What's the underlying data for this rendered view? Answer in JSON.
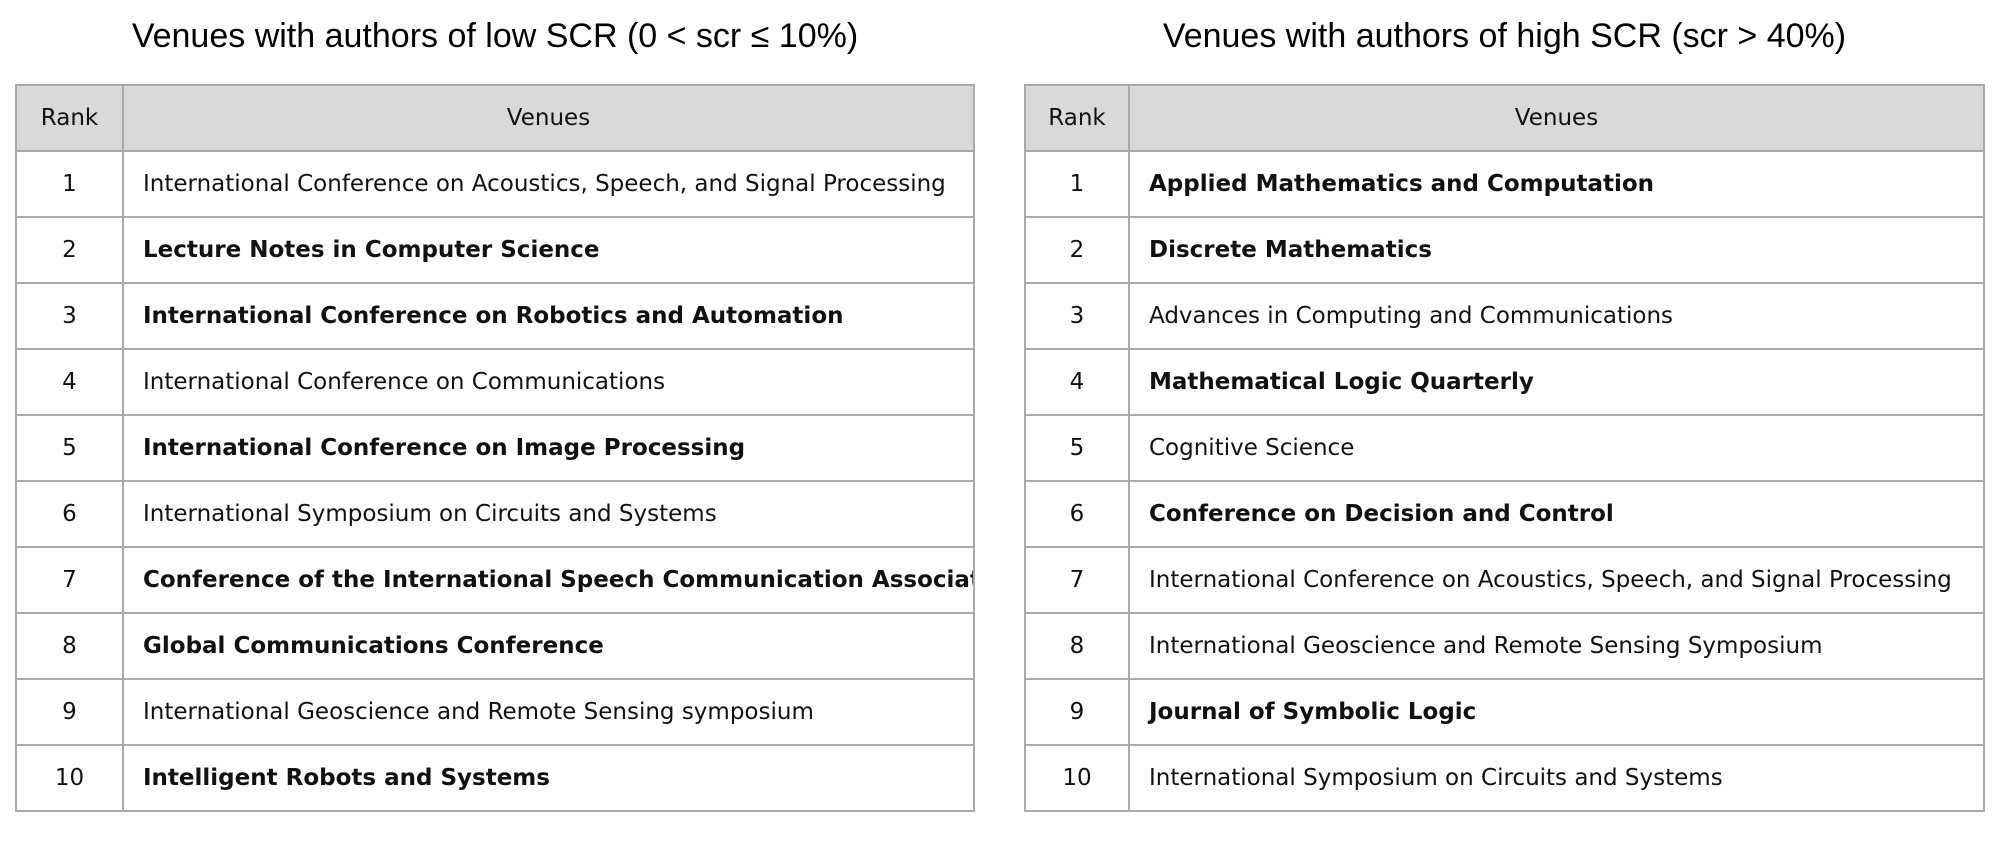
{
  "left": {
    "title": "Venues with authors of low SCR (0 < scr ≤ 10%)",
    "headers": {
      "rank": "Rank",
      "venues": "Venues"
    },
    "rows": [
      {
        "rank": "1",
        "venue": "International Conference on Acoustics, Speech, and Signal Processing",
        "bold": false
      },
      {
        "rank": "2",
        "venue": "Lecture Notes in Computer Science",
        "bold": true
      },
      {
        "rank": "3",
        "venue": "International Conference on Robotics and Automation",
        "bold": true
      },
      {
        "rank": "4",
        "venue": "International Conference on Communications",
        "bold": false
      },
      {
        "rank": "5",
        "venue": "International Conference on Image Processing",
        "bold": true
      },
      {
        "rank": "6",
        "venue": "International Symposium on Circuits and Systems",
        "bold": false
      },
      {
        "rank": "7",
        "venue": "Conference of the International Speech Communication Association",
        "bold": true
      },
      {
        "rank": "8",
        "venue": "Global Communications Conference",
        "bold": true
      },
      {
        "rank": "9",
        "venue": "International Geoscience and Remote Sensing symposium",
        "bold": false
      },
      {
        "rank": "10",
        "venue": "Intelligent Robots and Systems",
        "bold": true
      }
    ]
  },
  "right": {
    "title": "Venues with authors of high SCR (scr > 40%)",
    "headers": {
      "rank": "Rank",
      "venues": "Venues"
    },
    "rows": [
      {
        "rank": "1",
        "venue": "Applied Mathematics and Computation",
        "bold": true
      },
      {
        "rank": "2",
        "venue": "Discrete Mathematics",
        "bold": true
      },
      {
        "rank": "3",
        "venue": "Advances in Computing and Communications",
        "bold": false
      },
      {
        "rank": "4",
        "venue": "Mathematical Logic Quarterly",
        "bold": true
      },
      {
        "rank": "5",
        "venue": "Cognitive Science",
        "bold": false
      },
      {
        "rank": "6",
        "venue": "Conference on Decision and Control",
        "bold": true
      },
      {
        "rank": "7",
        "venue": "International Conference on Acoustics, Speech, and Signal Processing",
        "bold": false
      },
      {
        "rank": "8",
        "venue": "International Geoscience and Remote Sensing Symposium",
        "bold": false
      },
      {
        "rank": "9",
        "venue": "Journal of Symbolic Logic",
        "bold": true
      },
      {
        "rank": "10",
        "venue": "International Symposium on Circuits and Systems",
        "bold": false
      }
    ]
  }
}
